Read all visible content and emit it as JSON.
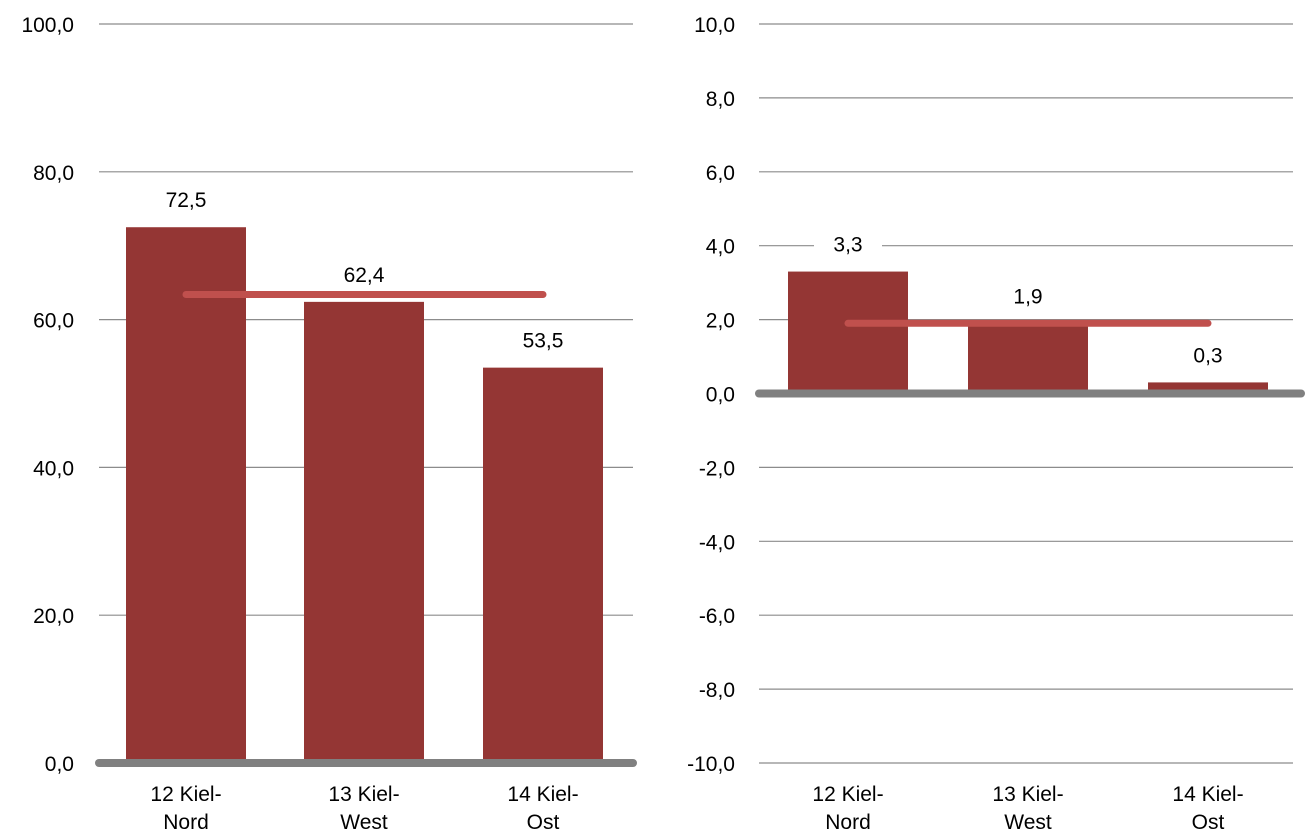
{
  "chart_data": [
    {
      "type": "bar",
      "title": "",
      "xlabel": "",
      "ylabel": "",
      "categories": [
        [
          "12 Kiel-",
          "Nord"
        ],
        [
          "13 Kiel-",
          "West"
        ],
        [
          "14 Kiel-",
          "Ost"
        ]
      ],
      "series": [
        {
          "values": [
            72.5,
            62.4,
            53.5
          ],
          "value_labels": [
            "72,5",
            "62,4",
            "53,5"
          ],
          "color": "#943634"
        }
      ],
      "reference_line": {
        "value": 63.4,
        "color": "#c0504d"
      },
      "ylim": [
        0,
        100
      ],
      "yticks": [
        0,
        20,
        40,
        60,
        80,
        100
      ],
      "ytick_labels": [
        "0,0",
        "20,0",
        "40,0",
        "60,0",
        "80,0",
        "100,0"
      ],
      "grid": true,
      "legend": "none"
    },
    {
      "type": "bar",
      "title": "",
      "xlabel": "",
      "ylabel": "",
      "categories": [
        [
          "12 Kiel-",
          "Nord"
        ],
        [
          "13 Kiel-",
          "West"
        ],
        [
          "14 Kiel-",
          "Ost"
        ]
      ],
      "series": [
        {
          "values": [
            3.3,
            1.9,
            0.3
          ],
          "value_labels": [
            "3,3",
            "1,9",
            "0,3"
          ],
          "color": "#943634"
        }
      ],
      "reference_line": {
        "value": 1.9,
        "color": "#c0504d"
      },
      "ylim": [
        -10,
        10
      ],
      "yticks": [
        -10,
        -8,
        -6,
        -4,
        -2,
        0,
        2,
        4,
        6,
        8,
        10
      ],
      "ytick_labels": [
        "-10,0",
        "-8,0",
        "-6,0",
        "-4,0",
        "-2,0",
        "0,0",
        "2,0",
        "4,0",
        "6,0",
        "8,0",
        "10,0"
      ],
      "grid": true,
      "legend": "none"
    }
  ]
}
